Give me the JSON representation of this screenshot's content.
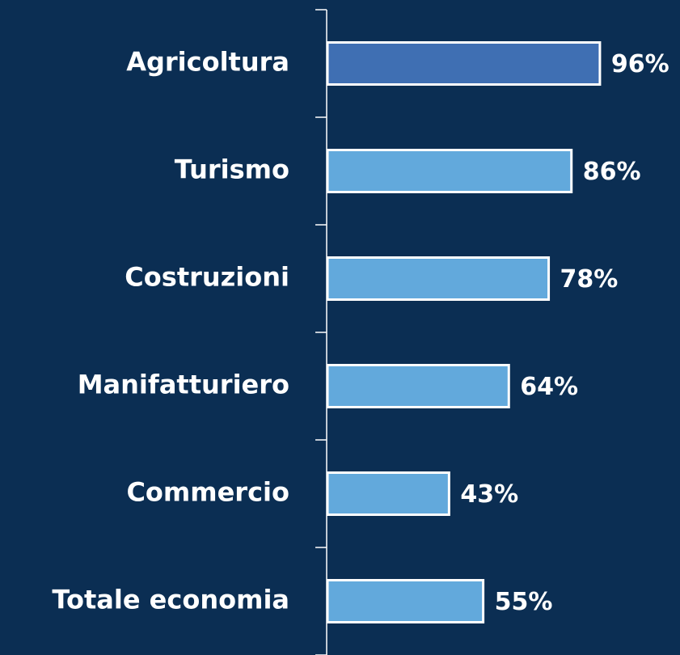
{
  "chart_data": {
    "type": "bar",
    "orientation": "horizontal",
    "categories": [
      "Agricoltura",
      "Turismo",
      "Costruzioni",
      "Manifatturiero",
      "Commercio",
      "Totale economia"
    ],
    "values": [
      96,
      86,
      78,
      64,
      43,
      55
    ],
    "value_labels": [
      "96%",
      "86%",
      "78%",
      "64%",
      "43%",
      "55%"
    ],
    "colors": [
      "#3f6fb3",
      "#62a9dc",
      "#62a9dc",
      "#62a9dc",
      "#62a9dc",
      "#62a9dc"
    ]
  }
}
